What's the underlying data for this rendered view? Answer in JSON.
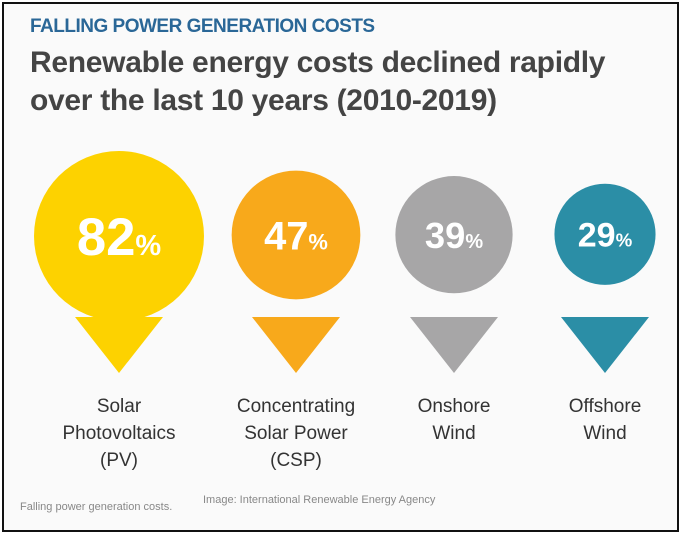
{
  "kicker": "FALLING POWER GENERATION COSTS",
  "title_line1": "Renewable energy costs declined rapidly",
  "title_line2": "over the last 10 years (2010-2019)",
  "caption": "Falling power generation costs.",
  "credit": "Image: International Renewable Energy Agency",
  "chart_data": {
    "type": "bubble",
    "title": "Renewable energy costs declined rapidly over the last 10 years (2010-2019)",
    "unit": "%",
    "categories": [
      {
        "name": "Solar Photovoltaics (PV)",
        "lines": [
          "Solar",
          "Photovoltaics",
          "(PV)"
        ],
        "value": 82,
        "color": "#fdd200"
      },
      {
        "name": "Concentrating Solar Power (CSP)",
        "lines": [
          "Concentrating",
          "Solar Power",
          "(CSP)"
        ],
        "value": 47,
        "color": "#f8a91b"
      },
      {
        "name": "Onshore Wind",
        "lines": [
          "Onshore",
          "Wind"
        ],
        "value": 39,
        "color": "#a7a6a7"
      },
      {
        "name": "Offshore Wind",
        "lines": [
          "Offshore",
          "Wind"
        ],
        "value": 29,
        "color": "#2b8ea6"
      }
    ]
  }
}
